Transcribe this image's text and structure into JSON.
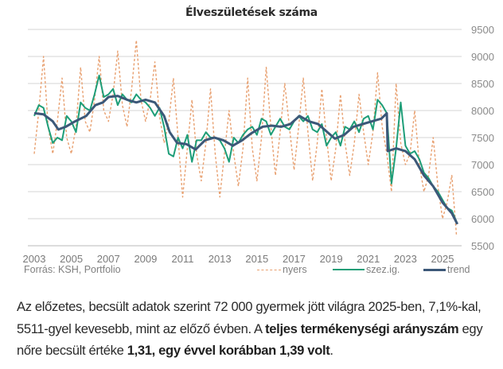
{
  "chart_data": {
    "type": "line",
    "title": "Élveszületések száma",
    "xlabel": "",
    "ylabel": "",
    "xlim": [
      2003,
      2026
    ],
    "ylim": [
      5500,
      9500
    ],
    "y_ticks": [
      "5500",
      "6000",
      "6500",
      "7000",
      "7500",
      "8000",
      "8500",
      "9000",
      "9500"
    ],
    "x_ticks": [
      "2003",
      "2005",
      "2007",
      "2009",
      "2011",
      "2013",
      "2015",
      "2017",
      "2019",
      "2021",
      "2023",
      "2025"
    ],
    "grid": true,
    "y_axis_position": "right",
    "legend_position": "bottom-right",
    "series": [
      {
        "name": "nyers",
        "style": "dashed",
        "color": "#e8a070",
        "x": [
          2003.0,
          2003.25,
          2003.5,
          2003.75,
          2004.0,
          2004.25,
          2004.5,
          2004.75,
          2005.0,
          2005.25,
          2005.5,
          2005.75,
          2006.0,
          2006.25,
          2006.5,
          2006.75,
          2007.0,
          2007.25,
          2007.5,
          2007.75,
          2008.0,
          2008.25,
          2008.5,
          2008.75,
          2009.0,
          2009.25,
          2009.5,
          2009.75,
          2010.0,
          2010.25,
          2010.5,
          2010.75,
          2011.0,
          2011.25,
          2011.5,
          2011.75,
          2012.0,
          2012.25,
          2012.5,
          2012.75,
          2013.0,
          2013.25,
          2013.5,
          2013.75,
          2014.0,
          2014.25,
          2014.5,
          2014.75,
          2015.0,
          2015.25,
          2015.5,
          2015.75,
          2016.0,
          2016.25,
          2016.5,
          2016.75,
          2017.0,
          2017.25,
          2017.5,
          2017.75,
          2018.0,
          2018.25,
          2018.5,
          2018.75,
          2019.0,
          2019.25,
          2019.5,
          2019.75,
          2020.0,
          2020.25,
          2020.5,
          2020.75,
          2021.0,
          2021.25,
          2021.5,
          2021.75,
          2022.0,
          2022.25,
          2022.5,
          2022.75,
          2023.0,
          2023.25,
          2023.5,
          2023.75,
          2024.0,
          2024.25,
          2024.5,
          2024.75,
          2025.0,
          2025.25,
          2025.5,
          2025.75
        ],
        "values": [
          7200,
          8000,
          9000,
          7700,
          7200,
          7800,
          8600,
          7500,
          7200,
          7700,
          8800,
          7800,
          7600,
          8200,
          9000,
          8000,
          7800,
          8300,
          9100,
          8100,
          7700,
          8400,
          9300,
          8200,
          7800,
          8200,
          8900,
          7900,
          7400,
          7800,
          8600,
          7500,
          6400,
          7300,
          8200,
          7200,
          6700,
          7400,
          8400,
          7200,
          6400,
          7200,
          8000,
          7200,
          6600,
          7300,
          8600,
          7300,
          6700,
          7500,
          8800,
          7700,
          6800,
          7600,
          8500,
          7700,
          6900,
          7700,
          8600,
          7600,
          6700,
          7400,
          8400,
          7500,
          6700,
          7300,
          8300,
          7400,
          6800,
          7400,
          8300,
          7600,
          7000,
          7600,
          8700,
          7700,
          7200,
          6500,
          8500,
          7400,
          7000,
          7200,
          8000,
          7000,
          6500,
          6800,
          7500,
          6600,
          6000,
          6300,
          6800,
          5700
        ]
      },
      {
        "name": "szez.ig.",
        "style": "solid",
        "color": "#1e9e78",
        "x": [
          2003.0,
          2003.25,
          2003.5,
          2003.75,
          2004.0,
          2004.25,
          2004.5,
          2004.75,
          2005.0,
          2005.25,
          2005.5,
          2005.75,
          2006.0,
          2006.25,
          2006.5,
          2006.75,
          2007.0,
          2007.25,
          2007.5,
          2007.75,
          2008.0,
          2008.25,
          2008.5,
          2008.75,
          2009.0,
          2009.25,
          2009.5,
          2009.75,
          2010.0,
          2010.25,
          2010.5,
          2010.75,
          2011.0,
          2011.25,
          2011.5,
          2011.75,
          2012.0,
          2012.25,
          2012.5,
          2012.75,
          2013.0,
          2013.25,
          2013.5,
          2013.75,
          2014.0,
          2014.25,
          2014.5,
          2014.75,
          2015.0,
          2015.25,
          2015.5,
          2015.75,
          2016.0,
          2016.25,
          2016.5,
          2016.75,
          2017.0,
          2017.25,
          2017.5,
          2017.75,
          2018.0,
          2018.25,
          2018.5,
          2018.75,
          2019.0,
          2019.25,
          2019.5,
          2019.75,
          2020.0,
          2020.25,
          2020.5,
          2020.75,
          2021.0,
          2021.25,
          2021.5,
          2021.75,
          2022.0,
          2022.25,
          2022.5,
          2022.75,
          2023.0,
          2023.25,
          2023.5,
          2023.75,
          2024.0,
          2024.25,
          2024.5,
          2024.75,
          2025.0,
          2025.25,
          2025.5,
          2025.75
        ],
        "values": [
          7900,
          8100,
          8050,
          7700,
          7400,
          7500,
          7450,
          7900,
          7800,
          7600,
          8150,
          8050,
          8000,
          8300,
          8650,
          8250,
          8300,
          8400,
          8100,
          8300,
          8200,
          8150,
          8300,
          8200,
          8150,
          8050,
          7900,
          8050,
          7700,
          7200,
          7150,
          7500,
          7300,
          7550,
          7050,
          7450,
          7450,
          7600,
          7500,
          7500,
          7450,
          7300,
          7050,
          7500,
          7400,
          7550,
          7650,
          7700,
          7550,
          7850,
          7800,
          7550,
          7700,
          7850,
          7700,
          7650,
          7800,
          7900,
          7800,
          7900,
          7650,
          7600,
          7750,
          7350,
          7500,
          7600,
          7350,
          7700,
          7650,
          7800,
          7600,
          7850,
          7900,
          7650,
          8200,
          8100,
          7950,
          6650,
          7300,
          8150,
          7350,
          7200,
          7250,
          7100,
          6850,
          6750,
          6600,
          6500,
          6350,
          6200,
          6150,
          5950
        ]
      },
      {
        "name": "trend",
        "style": "solid",
        "color": "#3c5878",
        "x": [
          2003.0,
          2003.5,
          2004.0,
          2004.3,
          2004.7,
          2005.2,
          2005.8,
          2006.3,
          2006.7,
          2007.0,
          2007.5,
          2008.0,
          2008.5,
          2009.0,
          2009.5,
          2010.0,
          2010.3,
          2010.7,
          2011.2,
          2011.7,
          2012.2,
          2012.7,
          2013.2,
          2013.7,
          2014.2,
          2014.7,
          2015.3,
          2015.8,
          2016.3,
          2016.8,
          2017.3,
          2017.8,
          2018.3,
          2018.8,
          2019.2,
          2019.7,
          2020.2,
          2020.7,
          2021.2,
          2021.7,
          2022.0,
          2022.05,
          2022.5,
          2023.0,
          2023.5,
          2024.0,
          2024.5,
          2025.0,
          2025.5,
          2025.8
        ],
        "values": [
          7950,
          7930,
          7800,
          7650,
          7700,
          7800,
          7900,
          8100,
          8150,
          8250,
          8270,
          8200,
          8150,
          8200,
          8150,
          7900,
          7600,
          7400,
          7380,
          7280,
          7450,
          7500,
          7450,
          7350,
          7450,
          7580,
          7700,
          7720,
          7700,
          7750,
          7900,
          7800,
          7750,
          7600,
          7480,
          7550,
          7700,
          7750,
          7800,
          7850,
          7950,
          7250,
          7300,
          7250,
          7100,
          6800,
          6600,
          6300,
          6100,
          5900
        ]
      }
    ]
  },
  "source": "Forrás: KSH, Portfolio",
  "legend": {
    "raw": "nyers",
    "sa": "szez.ig.",
    "trend": "trend"
  },
  "paragraph": {
    "p1": "Az előzetes, becsült adatok szerint 72 000 gyermek jött világra 2025-ben, 7,1%-kal, 5511-gyel kevesebb, mint az előző évben. A ",
    "b1": "teljes termékenységi arányszám",
    "p2": " egy nőre becsült értéke ",
    "b2": "1,31, egy évvel korábban 1,39 volt",
    "p3": "."
  }
}
